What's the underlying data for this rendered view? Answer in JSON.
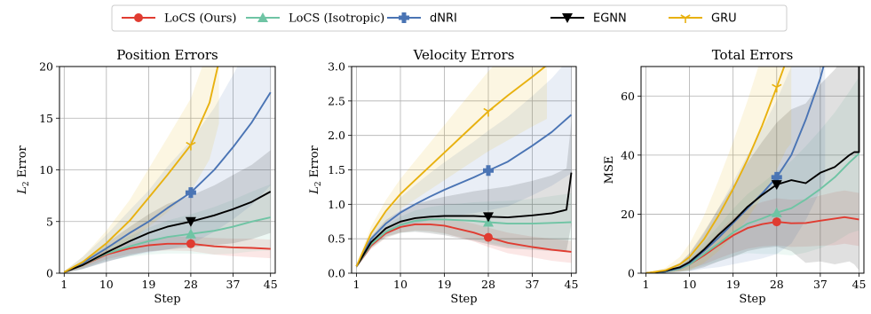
{
  "legend": [
    {
      "label": "LoCS (Ours)",
      "color": "#e03c31",
      "marker": "circle"
    },
    {
      "label": "LoCS (Isotropic)",
      "color": "#6fc4a4",
      "marker": "triangle-up"
    },
    {
      "label": "dNRI",
      "color": "#4a74b4",
      "marker": "plus"
    },
    {
      "label": "EGNN",
      "color": "#000000",
      "marker": "triangle-down"
    },
    {
      "label": "GRU",
      "color": "#e8b10f",
      "marker": "tri"
    }
  ],
  "chart_data": [
    {
      "type": "line",
      "title": "Position Errors",
      "xlabel": "Step",
      "ylabel": "L2 Error",
      "xlim": [
        0,
        46
      ],
      "ylim": [
        0,
        20
      ],
      "xticks": [
        1,
        10,
        19,
        28,
        37,
        45
      ],
      "yticks": [
        0,
        5,
        10,
        15,
        20
      ],
      "ytick_labels": [
        "0",
        "5",
        "10",
        "15",
        "20"
      ],
      "grid": true,
      "marker_step": 28,
      "series": [
        {
          "name": "LoCS (Ours)",
          "x": [
            1,
            5,
            10,
            15,
            19,
            23,
            28,
            33,
            37,
            41,
            45
          ],
          "y": [
            0.1,
            0.8,
            1.8,
            2.4,
            2.7,
            2.85,
            2.85,
            2.6,
            2.5,
            2.45,
            2.35
          ],
          "band": [
            0.1,
            0.3,
            0.45,
            0.55,
            0.6,
            0.65,
            0.7,
            0.8,
            0.85,
            0.9,
            0.9
          ]
        },
        {
          "name": "LoCS (Isotropic)",
          "x": [
            1,
            5,
            10,
            15,
            19,
            23,
            28,
            33,
            37,
            41,
            45
          ],
          "y": [
            0.1,
            0.8,
            1.9,
            2.6,
            3.1,
            3.5,
            3.8,
            4.1,
            4.5,
            5.0,
            5.4
          ],
          "band": [
            0.1,
            0.4,
            0.7,
            1.0,
            1.3,
            1.6,
            1.9,
            2.3,
            2.6,
            2.9,
            3.2
          ]
        },
        {
          "name": "dNRI",
          "x": [
            1,
            5,
            10,
            15,
            19,
            23,
            28,
            33,
            37,
            41,
            45
          ],
          "y": [
            0.1,
            1.0,
            2.4,
            3.9,
            5.0,
            6.3,
            7.8,
            10.0,
            12.2,
            14.6,
            17.5
          ],
          "band": [
            0.1,
            0.6,
            1.3,
            2.2,
            3.0,
            4.0,
            5.0,
            6.0,
            7.0,
            8.0,
            9.0
          ]
        },
        {
          "name": "EGNN",
          "x": [
            1,
            5,
            10,
            15,
            19,
            23,
            28,
            33,
            37,
            41,
            45
          ],
          "y": [
            0.1,
            0.8,
            2.0,
            3.1,
            3.9,
            4.5,
            5.0,
            5.6,
            6.2,
            6.9,
            7.9
          ],
          "band": [
            0.1,
            0.4,
            0.9,
            1.4,
            1.8,
            2.2,
            2.5,
            2.9,
            3.3,
            3.6,
            4.0
          ]
        },
        {
          "name": "GRU",
          "x": [
            1,
            5,
            10,
            15,
            19,
            23,
            28,
            32,
            34
          ],
          "y": [
            0.1,
            1.1,
            2.9,
            5.1,
            7.3,
            9.5,
            12.4,
            16.5,
            20.5
          ],
          "band": [
            0.1,
            0.5,
            1.2,
            2.0,
            2.8,
            3.6,
            4.5,
            5.5,
            6.0
          ]
        }
      ]
    },
    {
      "type": "line",
      "title": "Velocity Errors",
      "xlabel": "Step",
      "ylabel": "L2 Error",
      "xlim": [
        0,
        46
      ],
      "ylim": [
        0,
        3.0
      ],
      "xticks": [
        1,
        10,
        19,
        28,
        37,
        45
      ],
      "yticks": [
        0,
        0.5,
        1.0,
        1.5,
        2.0,
        2.5,
        3.0
      ],
      "ytick_labels": [
        "0.0",
        "0.5",
        "1.0",
        "1.5",
        "2.0",
        "2.5",
        "3.0"
      ],
      "grid": true,
      "marker_step": 28,
      "series": [
        {
          "name": "LoCS (Ours)",
          "x": [
            1,
            4,
            7,
            10,
            13,
            16,
            19,
            22,
            25,
            28,
            32,
            37,
            41,
            45
          ],
          "y": [
            0.1,
            0.4,
            0.58,
            0.67,
            0.71,
            0.71,
            0.69,
            0.64,
            0.59,
            0.52,
            0.44,
            0.38,
            0.34,
            0.31
          ],
          "band": [
            0.02,
            0.05,
            0.07,
            0.08,
            0.09,
            0.1,
            0.11,
            0.12,
            0.13,
            0.14,
            0.15,
            0.15,
            0.16,
            0.16
          ]
        },
        {
          "name": "LoCS (Isotropic)",
          "x": [
            1,
            4,
            7,
            10,
            13,
            16,
            19,
            22,
            25,
            28,
            32,
            37,
            41,
            45
          ],
          "y": [
            0.1,
            0.42,
            0.6,
            0.7,
            0.76,
            0.78,
            0.78,
            0.77,
            0.76,
            0.74,
            0.72,
            0.72,
            0.73,
            0.74
          ],
          "band": [
            0.02,
            0.06,
            0.09,
            0.12,
            0.15,
            0.18,
            0.21,
            0.24,
            0.27,
            0.3,
            0.33,
            0.36,
            0.39,
            0.42
          ]
        },
        {
          "name": "dNRI",
          "x": [
            1,
            4,
            7,
            10,
            13,
            16,
            19,
            22,
            25,
            28,
            32,
            37,
            41,
            45
          ],
          "y": [
            0.1,
            0.5,
            0.72,
            0.88,
            1.0,
            1.11,
            1.21,
            1.3,
            1.39,
            1.49,
            1.62,
            1.85,
            2.05,
            2.3
          ],
          "band": [
            0.03,
            0.1,
            0.16,
            0.22,
            0.28,
            0.34,
            0.4,
            0.46,
            0.52,
            0.58,
            0.65,
            0.72,
            0.78,
            0.85
          ]
        },
        {
          "name": "EGNN",
          "x": [
            1,
            4,
            7,
            10,
            13,
            16,
            19,
            22,
            25,
            28,
            32,
            37,
            41,
            44,
            45
          ],
          "y": [
            0.1,
            0.45,
            0.65,
            0.75,
            0.8,
            0.82,
            0.83,
            0.83,
            0.83,
            0.82,
            0.81,
            0.84,
            0.87,
            0.92,
            1.46
          ],
          "band": [
            0.03,
            0.08,
            0.12,
            0.16,
            0.2,
            0.24,
            0.28,
            0.32,
            0.36,
            0.4,
            0.45,
            0.5,
            0.55,
            0.6,
            0.75
          ]
        },
        {
          "name": "GRU",
          "x": [
            1,
            4,
            7,
            10,
            13,
            16,
            19,
            22,
            25,
            28,
            32,
            37,
            40
          ],
          "y": [
            0.1,
            0.58,
            0.9,
            1.15,
            1.35,
            1.55,
            1.75,
            1.95,
            2.15,
            2.35,
            2.58,
            2.85,
            3.02
          ],
          "band": [
            0.03,
            0.1,
            0.16,
            0.22,
            0.28,
            0.34,
            0.4,
            0.46,
            0.52,
            0.58,
            0.65,
            0.72,
            0.78
          ]
        }
      ]
    },
    {
      "type": "line",
      "title": "Total Errors",
      "xlabel": "Step",
      "ylabel": "MSE",
      "xlim": [
        0,
        46
      ],
      "ylim": [
        0,
        70
      ],
      "xticks": [
        1,
        10,
        19,
        28,
        37,
        45
      ],
      "yticks": [
        0,
        20,
        40,
        60
      ],
      "ytick_labels": [
        "0",
        "20",
        "40",
        "60"
      ],
      "grid": true,
      "marker_step": 28,
      "series": [
        {
          "name": "LoCS (Ours)",
          "x": [
            1,
            5,
            8,
            10,
            13,
            16,
            19,
            22,
            25,
            28,
            31,
            34,
            37,
            40,
            42,
            45
          ],
          "y": [
            0,
            0.5,
            1.5,
            3.0,
            6.0,
            9.5,
            12.8,
            15.3,
            16.6,
            17.4,
            16.9,
            17.0,
            17.8,
            18.5,
            19.0,
            18.2
          ],
          "band": [
            0,
            0.3,
            0.8,
            1.5,
            3.0,
            4.5,
            6.0,
            7.0,
            7.5,
            8.0,
            8.0,
            8.0,
            8.5,
            9.0,
            9.0,
            9.0
          ]
        },
        {
          "name": "LoCS (Isotropic)",
          "x": [
            1,
            5,
            8,
            10,
            13,
            16,
            19,
            22,
            25,
            28,
            31,
            34,
            37,
            40,
            43,
            45
          ],
          "y": [
            0,
            0.5,
            1.5,
            3.0,
            6.5,
            10.0,
            13.8,
            16.8,
            18.5,
            20.5,
            22.0,
            25.0,
            28.5,
            32.5,
            37.5,
            40.5
          ],
          "band": [
            0,
            0.3,
            1.0,
            2.0,
            4.0,
            6.0,
            8.0,
            10.0,
            12.0,
            14.0,
            16.0,
            18.0,
            20.0,
            22.0,
            24.0,
            26.0
          ]
        },
        {
          "name": "dNRI",
          "x": [
            1,
            5,
            8,
            10,
            13,
            16,
            19,
            22,
            25,
            28,
            31,
            34,
            37,
            38
          ],
          "y": [
            0,
            0.6,
            1.8,
            3.5,
            7.5,
            12.0,
            17.0,
            22.0,
            27.0,
            32.5,
            40.0,
            52.0,
            66.0,
            72.0
          ],
          "band": [
            0,
            0.5,
            1.5,
            3.0,
            6.0,
            10.0,
            14.0,
            18.0,
            22.0,
            26.0,
            30.0,
            34.0,
            38.0,
            40.0
          ]
        },
        {
          "name": "EGNN",
          "x": [
            1,
            5,
            8,
            10,
            13,
            16,
            19,
            22,
            25,
            28,
            31,
            34,
            37,
            40,
            43,
            44,
            45,
            45
          ],
          "y": [
            0,
            0.8,
            2.0,
            3.8,
            8.0,
            13.0,
            17.5,
            22.5,
            26.5,
            30.0,
            31.5,
            30.5,
            34.0,
            36.0,
            40.0,
            41.0,
            41.0,
            72.0
          ],
          "band": [
            0,
            0.5,
            1.5,
            3.0,
            6.0,
            9.0,
            12.0,
            15.0,
            18.0,
            21.0,
            24.0,
            27.0,
            30.0,
            33.0,
            36.0,
            38.0,
            40.0,
            40.0
          ]
        },
        {
          "name": "GRU",
          "x": [
            1,
            5,
            8,
            10,
            13,
            16,
            19,
            22,
            25,
            28,
            30,
            31
          ],
          "y": [
            0,
            1.0,
            3.0,
            5.5,
            11.5,
            19.5,
            28.5,
            38.5,
            50.0,
            63.0,
            72.0,
            76.0
          ],
          "band": [
            0,
            0.8,
            2.5,
            4.5,
            8.0,
            12.0,
            16.0,
            20.0,
            24.0,
            28.0,
            30.0,
            32.0
          ]
        }
      ]
    }
  ]
}
